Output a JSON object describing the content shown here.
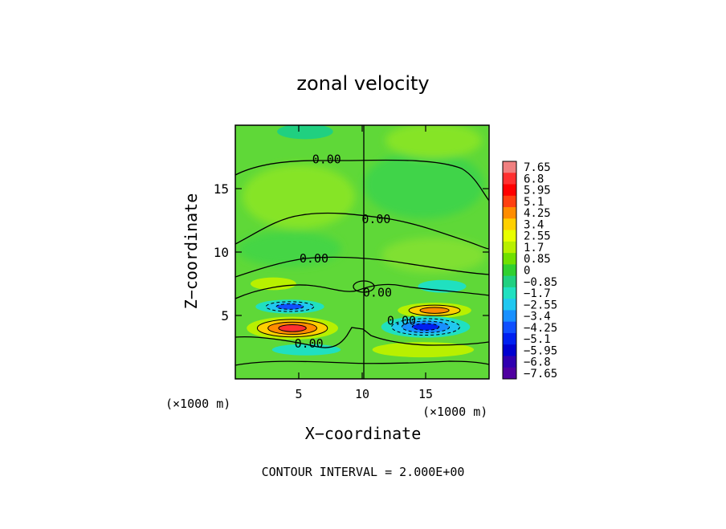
{
  "chart_data": {
    "type": "heatmap",
    "title": "zonal velocity",
    "xlabel": "X−coordinate",
    "ylabel": "Z−coordinate",
    "x_unit_left": "(×1000 m)",
    "x_unit_right": "(×1000 m)",
    "xlim": [
      0,
      20
    ],
    "ylim": [
      0,
      20
    ],
    "xticks": [
      5,
      10,
      15
    ],
    "yticks": [
      5,
      10,
      15
    ],
    "footer": "CONTOUR INTERVAL = 2.000E+00",
    "colorbar": {
      "labels": [
        "7.65",
        "6.8",
        "5.95",
        "5.1",
        "4.25",
        "3.4",
        "2.55",
        "1.7",
        "0.85",
        "0",
        "−0.85",
        "−1.7",
        "−2.55",
        "−3.4",
        "−4.25",
        "−5.1",
        "−5.95",
        "−6.8",
        "−7.65"
      ],
      "colors": [
        "#f08080",
        "#ff3030",
        "#ff0000",
        "#ff4010",
        "#ff8c00",
        "#ffd000",
        "#e8ff00",
        "#b8f000",
        "#70e000",
        "#30d030",
        "#20d080",
        "#20e0c0",
        "#20c8f0",
        "#1890ff",
        "#1050ff",
        "#0020f0",
        "#0000d0",
        "#3000b0",
        "#5000a0"
      ]
    },
    "contour_labels": [
      {
        "text": "0.00",
        "x": 7.2,
        "z": 17.3
      },
      {
        "text": "0.00",
        "x": 11.1,
        "z": 12.6
      },
      {
        "text": "0.00",
        "x": 6.2,
        "z": 9.5
      },
      {
        "text": "0.00",
        "x": 11.2,
        "z": 6.8
      },
      {
        "text": "0.00",
        "x": 13.1,
        "z": 4.6
      },
      {
        "text": "0.00",
        "x": 5.8,
        "z": 2.8
      }
    ],
    "blobs": [
      {
        "name": "pos-left",
        "x": 4.5,
        "z": 4.0,
        "rx": 3.6,
        "rz": 0.9,
        "levels": [
          "#b8f000",
          "#ffd000",
          "#ff8c00",
          "#ff3030"
        ]
      },
      {
        "name": "neg-left",
        "x": 4.3,
        "z": 5.7,
        "rx": 2.7,
        "rz": 0.55,
        "levels": [
          "#20e0c0",
          "#20c8f0",
          "#1050ff"
        ]
      },
      {
        "name": "pos-right",
        "x": 15.7,
        "z": 5.4,
        "rx": 2.9,
        "rz": 0.6,
        "levels": [
          "#b8f000",
          "#ffd000",
          "#ff8c00"
        ]
      },
      {
        "name": "neg-right",
        "x": 15.0,
        "z": 4.1,
        "rx": 3.5,
        "rz": 0.85,
        "levels": [
          "#20e0c0",
          "#20c8f0",
          "#1890ff",
          "#0020f0"
        ]
      },
      {
        "name": "neg-low-left",
        "x": 5.6,
        "z": 2.3,
        "rx": 2.7,
        "rz": 0.45,
        "levels": [
          "#20e0c0"
        ]
      },
      {
        "name": "pos-low-right",
        "x": 14.8,
        "z": 2.3,
        "rx": 4.0,
        "rz": 0.6,
        "levels": [
          "#b8f000"
        ]
      },
      {
        "name": "pos-mid-left",
        "x": 3.0,
        "z": 7.5,
        "rx": 1.8,
        "rz": 0.5,
        "levels": [
          "#b8f000"
        ]
      },
      {
        "name": "neg-mid-right",
        "x": 16.3,
        "z": 7.3,
        "rx": 1.9,
        "rz": 0.5,
        "levels": [
          "#20e0c0"
        ]
      },
      {
        "name": "neg-top-left",
        "x": 5.5,
        "z": 19.5,
        "rx": 2.2,
        "rz": 0.6,
        "levels": [
          "#20d080"
        ]
      }
    ]
  }
}
